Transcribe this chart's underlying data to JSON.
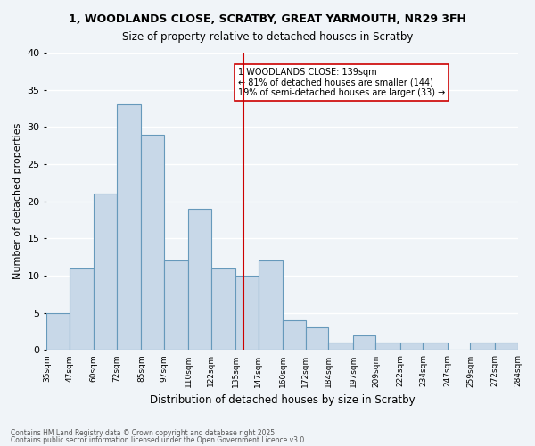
{
  "title_line1": "1, WOODLANDS CLOSE, SCRATBY, GREAT YARMOUTH, NR29 3FH",
  "title_line2": "Size of property relative to detached houses in Scratby",
  "xlabel": "Distribution of detached houses by size in Scratby",
  "ylabel": "Number of detached properties",
  "bar_color": "#c8d8e8",
  "bar_edge_color": "#6699bb",
  "bins": [
    35,
    47,
    60,
    72,
    85,
    97,
    110,
    122,
    135,
    147,
    160,
    172,
    184,
    197,
    209,
    222,
    234,
    247,
    259,
    272,
    284
  ],
  "bin_labels": [
    "35sqm",
    "47sqm",
    "60sqm",
    "72sqm",
    "85sqm",
    "97sqm",
    "110sqm",
    "122sqm",
    "135sqm",
    "147sqm",
    "160sqm",
    "172sqm",
    "184sqm",
    "197sqm",
    "209sqm",
    "222sqm",
    "234sqm",
    "247sqm",
    "259sqm",
    "272sqm",
    "284sqm"
  ],
  "counts": [
    5,
    11,
    21,
    33,
    29,
    12,
    19,
    11,
    10,
    12,
    4,
    3,
    1,
    2,
    1,
    1,
    1,
    0,
    1,
    1
  ],
  "ylim": [
    0,
    40
  ],
  "yticks": [
    0,
    5,
    10,
    15,
    20,
    25,
    30,
    35,
    40
  ],
  "vline_x": 139,
  "vline_color": "#cc0000",
  "annotation_text": "1 WOODLANDS CLOSE: 139sqm\n← 81% of detached houses are smaller (144)\n19% of semi-detached houses are larger (33) →",
  "annotation_box_color": "#ffffff",
  "annotation_box_edge": "#cc0000",
  "background_color": "#f0f4f8",
  "grid_color": "#ffffff",
  "footnote1": "Contains HM Land Registry data © Crown copyright and database right 2025.",
  "footnote2": "Contains public sector information licensed under the Open Government Licence v3.0."
}
